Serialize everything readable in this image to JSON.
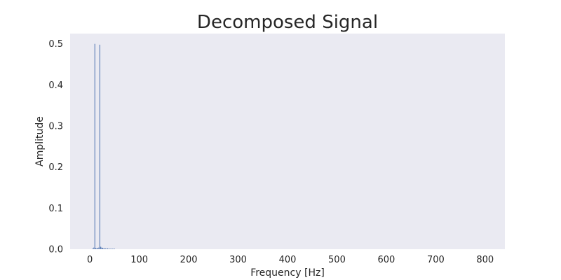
{
  "chart_data": {
    "type": "bar",
    "title": "Decomposed Signal",
    "xlabel": "Frequency [Hz]",
    "ylabel": "Amplitude",
    "xlim": [
      -40,
      840
    ],
    "ylim": [
      0,
      0.525
    ],
    "xticks": [
      0,
      100,
      200,
      300,
      400,
      500,
      600,
      700,
      800
    ],
    "yticks": [
      0.0,
      0.1,
      0.2,
      0.3,
      0.4,
      0.5
    ],
    "ytick_labels": [
      "0.0",
      "0.1",
      "0.2",
      "0.3",
      "0.4",
      "0.5"
    ],
    "grid": false,
    "series": [
      {
        "x": [
          6,
          8,
          10,
          12,
          14,
          16,
          18,
          20,
          22,
          24,
          26,
          28,
          30,
          32,
          34,
          36,
          38,
          40,
          42,
          44,
          46,
          48,
          50
        ],
        "values": [
          0.002,
          0.004,
          0.5,
          0.003,
          0.002,
          0.003,
          0.004,
          0.498,
          0.006,
          0.004,
          0.003,
          0.002,
          0.002,
          0.002,
          0.001,
          0.002,
          0.001,
          0.001,
          0.001,
          0.001,
          0.001,
          0.001,
          0.001
        ]
      }
    ],
    "colors": {
      "background": "#EAEAF2",
      "bar": "#4C72B0",
      "text": "#262626"
    }
  }
}
